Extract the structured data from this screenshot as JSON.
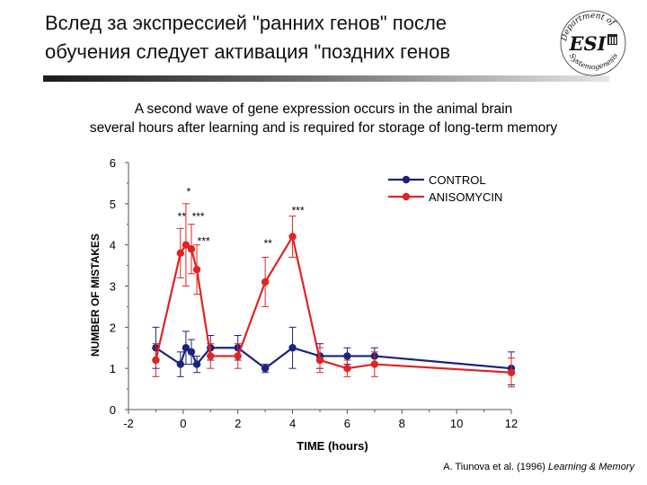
{
  "slide": {
    "title_line1": "Вслед за экспрессией \"ранних генов\" после",
    "title_line2": "обучения следует активация \"поздних генов",
    "subtitle_line1": "A second wave of gene expression occurs in the animal brain",
    "subtitle_line2": "several hours after learning and is required for storage of long-term memory",
    "credit_authors": "A. Tiunova et al. (1996)",
    "credit_journal": "Learning & Memory"
  },
  "logo": {
    "arc_top": "Department of",
    "center": "ESI",
    "arc_bottom": "Systemogenesis"
  },
  "chart_data": {
    "type": "line",
    "xlabel": "TIME (hours)",
    "ylabel": "NUMBER OF MISTAKES",
    "xlim": [
      -2,
      12
    ],
    "ylim": [
      0,
      6
    ],
    "x_ticks": [
      -2,
      0,
      2,
      4,
      6,
      8,
      10,
      12
    ],
    "y_ticks": [
      0,
      1,
      2,
      3,
      4,
      5,
      6
    ],
    "grid": false,
    "legend_position": "top-right",
    "series": [
      {
        "name": "CONTROL",
        "color": "#1a237e",
        "x": [
          -1,
          -0.1,
          0.1,
          0.3,
          0.5,
          1,
          2,
          3,
          4,
          5,
          6,
          7,
          12
        ],
        "y": [
          1.5,
          1.1,
          1.5,
          1.4,
          1.1,
          1.5,
          1.5,
          1.0,
          1.5,
          1.3,
          1.3,
          1.3,
          1.0
        ],
        "err": [
          0.5,
          0.3,
          0.4,
          0.3,
          0.2,
          0.3,
          0.3,
          0.1,
          0.5,
          0.3,
          0.2,
          0.2,
          0.4
        ]
      },
      {
        "name": "ANISOMYCIN",
        "color": "#e32222",
        "x": [
          -1,
          -0.1,
          0.1,
          0.3,
          0.5,
          1,
          2,
          3,
          4,
          5,
          6,
          7,
          12
        ],
        "y": [
          1.2,
          3.8,
          4.0,
          3.9,
          3.4,
          1.3,
          1.3,
          3.1,
          4.2,
          1.2,
          1.0,
          1.1,
          0.9
        ],
        "err": [
          0.4,
          0.6,
          1.0,
          0.6,
          0.6,
          0.3,
          0.3,
          0.6,
          0.5,
          0.3,
          0.2,
          0.3,
          0.35
        ]
      }
    ],
    "annotations": [
      {
        "text": "*",
        "x": 0.2,
        "y": 5.2
      },
      {
        "text": "**",
        "x": -0.05,
        "y": 4.6
      },
      {
        "text": "***",
        "x": 0.55,
        "y": 4.6
      },
      {
        "text": "***",
        "x": 0.75,
        "y": 4.0
      },
      {
        "text": "**",
        "x": 3.1,
        "y": 3.95
      },
      {
        "text": "***",
        "x": 4.2,
        "y": 4.75
      }
    ]
  }
}
